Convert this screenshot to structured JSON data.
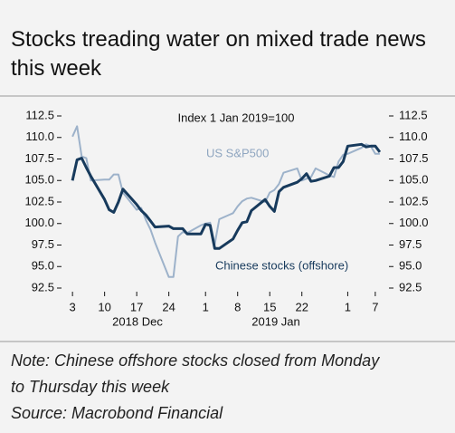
{
  "chart_data": {
    "type": "line",
    "title": "Stocks treading water on mixed trade news this week",
    "annotations": [
      "Index 1 Jan 2019=100",
      "US S&P500",
      "Chinese stocks (offshore)"
    ],
    "x_groups": [
      "2018 Dec",
      "2019 Jan"
    ],
    "x": [
      "2018-12-03",
      "2018-12-04",
      "2018-12-05",
      "2018-12-06",
      "2018-12-07",
      "2018-12-10",
      "2018-12-11",
      "2018-12-12",
      "2018-12-13",
      "2018-12-14",
      "2018-12-17",
      "2018-12-18",
      "2018-12-19",
      "2018-12-20",
      "2018-12-21",
      "2018-12-24",
      "2018-12-25",
      "2018-12-26",
      "2018-12-27",
      "2018-12-28",
      "2018-12-31",
      "2019-01-01",
      "2019-01-02",
      "2019-01-03",
      "2019-01-04",
      "2019-01-07",
      "2019-01-08",
      "2019-01-09",
      "2019-01-10",
      "2019-01-11",
      "2019-01-14",
      "2019-01-15",
      "2019-01-16",
      "2019-01-17",
      "2019-01-18",
      "2019-01-21",
      "2019-01-22",
      "2019-01-23",
      "2019-01-24",
      "2019-01-25",
      "2019-01-28",
      "2019-01-29",
      "2019-01-30",
      "2019-01-31",
      "2019-02-01",
      "2019-02-04",
      "2019-02-05",
      "2019-02-06",
      "2019-02-07",
      "2019-02-08"
    ],
    "series": [
      {
        "name": "US S&P500",
        "color": "#9db2ca",
        "values": [
          110.1,
          111.3,
          107.8,
          107.6,
          105.0,
          105.1,
          105.1,
          105.7,
          105.7,
          103.6,
          101.6,
          101.8,
          100.4,
          99.3,
          97.8,
          93.8,
          93.8,
          98.5,
          99.0,
          98.9,
          99.8,
          100.0,
          100.1,
          97.6,
          100.5,
          101.2,
          102.0,
          102.6,
          102.9,
          103.0,
          102.5,
          103.6,
          103.9,
          104.6,
          105.9,
          106.4,
          105.0,
          105.2,
          105.4,
          106.4,
          105.6,
          105.4,
          107.2,
          108.0,
          108.1,
          108.8,
          109.2,
          109.0,
          108.1,
          108.1
        ]
      },
      {
        "name": "Chinese stocks (offshore)",
        "color": "#173a5c",
        "values": [
          105.0,
          107.4,
          107.6,
          106.5,
          105.5,
          102.8,
          101.6,
          101.3,
          102.5,
          104.0,
          102.2,
          101.5,
          101.0,
          100.3,
          99.6,
          99.7,
          99.4,
          99.4,
          99.4,
          98.8,
          98.8,
          99.9,
          99.8,
          97.1,
          97.1,
          98.2,
          99.2,
          100.1,
          100.2,
          101.5,
          102.8,
          102.0,
          101.4,
          103.7,
          104.2,
          104.8,
          105.2,
          105.8,
          104.9,
          105.0,
          105.5,
          106.5,
          106.5,
          107.2,
          109.0,
          109.2,
          108.9,
          109.0,
          109.0,
          108.3
        ]
      }
    ],
    "xlim": [
      "2018-12-01",
      "2019-02-09"
    ],
    "xticks": [
      {
        "value": "2018-12-03",
        "label": "3"
      },
      {
        "value": "2018-12-10",
        "label": "10"
      },
      {
        "value": "2018-12-17",
        "label": "17"
      },
      {
        "value": "2018-12-24",
        "label": "24"
      },
      {
        "value": "2019-01-01",
        "label": "1"
      },
      {
        "value": "2019-01-08",
        "label": "8"
      },
      {
        "value": "2019-01-15",
        "label": "15"
      },
      {
        "value": "2019-01-22",
        "label": "22"
      },
      {
        "value": "2019-02-01",
        "label": "1"
      },
      {
        "value": "2019-02-07",
        "label": "7"
      }
    ],
    "ylim": [
      92.5,
      112.5
    ],
    "yticks": [
      92.5,
      {
        "value": 95,
        "label": "95.0"
      },
      97.5,
      {
        "value": 100,
        "label": "100.0"
      },
      102.5,
      {
        "value": 105,
        "label": "105.0"
      },
      107.5,
      {
        "value": 110,
        "label": "110.0"
      },
      112.5
    ],
    "y2lim": [
      92.5,
      112.5
    ],
    "y2ticks": [
      92.5,
      {
        "value": 95,
        "label": "95.0"
      },
      97.5,
      {
        "value": 100,
        "label": "100.0"
      },
      102.5,
      {
        "value": 105,
        "label": "105.0"
      },
      107.5,
      {
        "value": 110,
        "label": "110.0"
      },
      112.5
    ],
    "grid": false
  },
  "notes": [
    "Note: Chinese offshore stocks closed from Monday to Thursday this week",
    "Source: Macrobond Financial"
  ]
}
